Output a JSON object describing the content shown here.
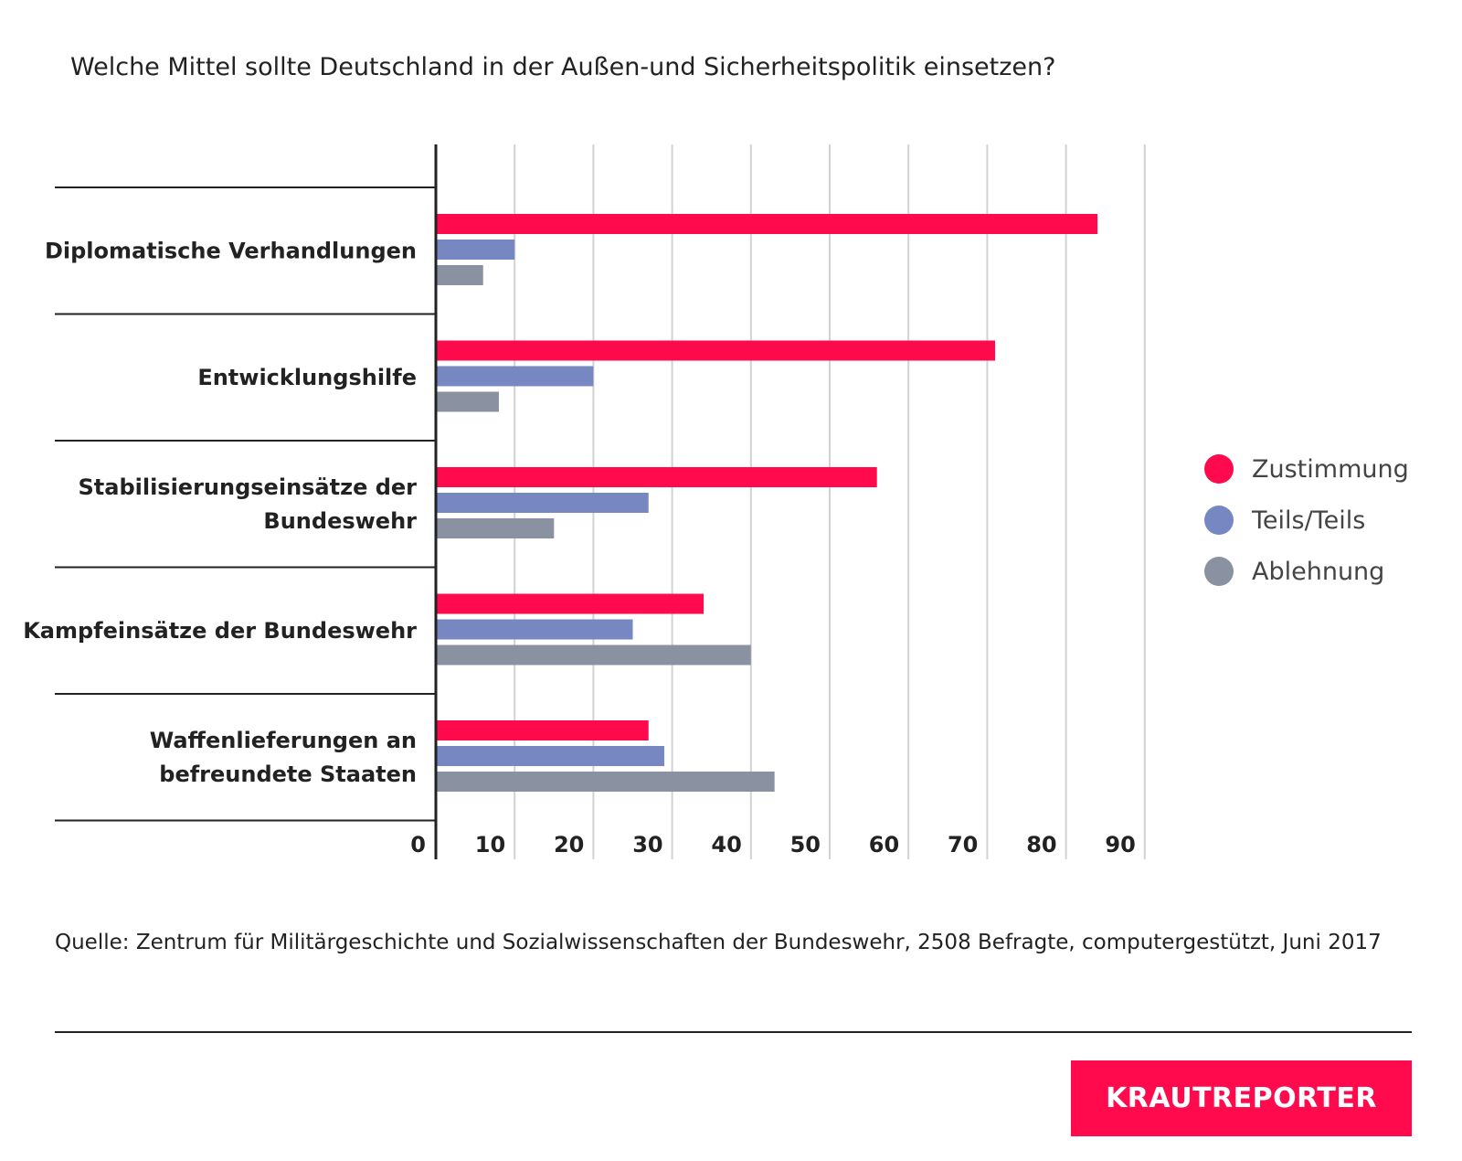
{
  "title": "Welche Mittel sollte Deutschland in der Außen-und Sicherheitspolitik einsetzen?",
  "source": "Quelle: Zentrum für Militärgeschichte und Sozialwissenschaften der Bundeswehr,  2508 Befragte, computergestützt, Juni 2017",
  "logo": {
    "text": "KRAUTREPORTER",
    "background": "#ff0a4d"
  },
  "colors": {
    "Zustimmung": "#ff0a4d",
    "Teils/Teils": "#7787c1",
    "Ablehnung": "#8a91a0",
    "axis": "#222222",
    "grid": "#d2d2d2"
  },
  "chart_data": {
    "type": "bar",
    "orientation": "horizontal",
    "title": "Welche Mittel sollte Deutschland in der Außen-und Sicherheitspolitik einsetzen?",
    "categories": [
      [
        "Diplomatische Verhandlungen"
      ],
      [
        "Entwicklungshilfe"
      ],
      [
        "Stabilisierungseinsätze der",
        "Bundeswehr"
      ],
      [
        "Kampfeinsätze der Bundeswehr"
      ],
      [
        "Waffenlieferungen an",
        "befreundete Staaten"
      ]
    ],
    "series": [
      {
        "name": "Zustimmung",
        "values": [
          84,
          71,
          56,
          34,
          27
        ]
      },
      {
        "name": "Teils/Teils",
        "values": [
          10,
          20,
          27,
          25,
          29
        ]
      },
      {
        "name": "Ablehnung",
        "values": [
          6,
          8,
          15,
          40,
          43
        ]
      }
    ],
    "xlim": [
      0,
      90
    ],
    "xticks": [
      0,
      10,
      20,
      30,
      40,
      50,
      60,
      70,
      80,
      90
    ],
    "grid": true,
    "legend_position": "right"
  }
}
